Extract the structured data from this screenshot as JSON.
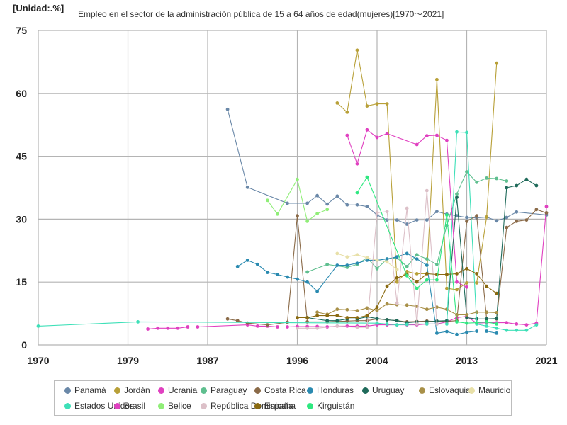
{
  "chart_data": {
    "type": "line",
    "unit_label": "[Unidad:.%]",
    "title": "Empleo en el sector de la administración pública de 15 a 64 años de edad(mujeres)[1970～2021]",
    "xlabel": "",
    "ylabel": "",
    "xlim": [
      1970,
      2021
    ],
    "ylim": [
      0,
      75
    ],
    "x_ticks": [
      1970,
      1979,
      1987,
      1996,
      2004,
      2013,
      2021
    ],
    "y_ticks": [
      0,
      15,
      30,
      45,
      60,
      75
    ],
    "grid": true,
    "legend_position": "bottom",
    "series": [
      {
        "name": "Panamá",
        "color": "#6a88a8",
        "points": [
          [
            1989,
            56.2
          ],
          [
            1991,
            37.6
          ],
          [
            1995,
            33.8
          ],
          [
            1997,
            33.8
          ],
          [
            1998,
            35.6
          ],
          [
            1999,
            33.6
          ],
          [
            2000,
            35.5
          ],
          [
            2001,
            33.4
          ],
          [
            2002,
            33.4
          ],
          [
            2003,
            33.0
          ],
          [
            2004,
            31.0
          ],
          [
            2005,
            29.8
          ],
          [
            2006,
            29.8
          ],
          [
            2007,
            28.8
          ],
          [
            2008,
            29.8
          ],
          [
            2009,
            29.8
          ],
          [
            2010,
            31.8
          ],
          [
            2011,
            31.2
          ],
          [
            2012,
            30.8
          ],
          [
            2013,
            30.4
          ],
          [
            2014,
            30.3
          ],
          [
            2015,
            30.5
          ],
          [
            2016,
            29.6
          ],
          [
            2017,
            30.4
          ],
          [
            2018,
            31.7
          ],
          [
            2021,
            31.0
          ]
        ]
      },
      {
        "name": "Jordán",
        "color": "#b8a038",
        "points": [
          [
            2000,
            57.7
          ],
          [
            2001,
            55.5
          ],
          [
            2002,
            70.3
          ],
          [
            2003,
            57.0
          ],
          [
            2004,
            57.5
          ],
          [
            2005,
            57.5
          ],
          [
            2006,
            15.0
          ],
          [
            2007,
            17.5
          ],
          [
            2008,
            17.0
          ],
          [
            2009,
            17.0
          ],
          [
            2010,
            63.3
          ],
          [
            2011,
            13.5
          ],
          [
            2012,
            13.2
          ],
          [
            2013,
            14.8
          ],
          [
            2014,
            14.8
          ],
          [
            2015,
            30.5
          ],
          [
            2016,
            67.2
          ]
        ]
      },
      {
        "name": "Ucrania",
        "color": "#e040c0",
        "points": [
          [
            1981,
            3.8
          ],
          [
            1982,
            4.0
          ],
          [
            1983,
            4.0
          ],
          [
            1984,
            4.0
          ],
          [
            1985,
            4.3
          ],
          [
            1986,
            4.3
          ],
          [
            1991,
            4.8
          ],
          [
            1992,
            4.5
          ],
          [
            1993,
            4.5
          ],
          [
            1994,
            4.3
          ],
          [
            1995,
            4.3
          ],
          [
            1996,
            4.4
          ],
          [
            1997,
            4.4
          ],
          [
            1998,
            4.4
          ],
          [
            1999,
            4.3
          ],
          [
            2000,
            4.5
          ],
          [
            2001,
            4.5
          ],
          [
            2002,
            4.5
          ],
          [
            2003,
            4.5
          ],
          [
            2004,
            4.8
          ],
          [
            2005,
            4.8
          ],
          [
            2006,
            4.8
          ],
          [
            2007,
            4.8
          ],
          [
            2008,
            4.8
          ],
          [
            2009,
            5.0
          ],
          [
            2010,
            5.0
          ],
          [
            2011,
            5.5
          ],
          [
            2012,
            6.5
          ],
          [
            2013,
            6.8
          ],
          [
            2014,
            5.2
          ],
          [
            2015,
            5.3
          ],
          [
            2016,
            5.3
          ],
          [
            2017,
            5.3
          ],
          [
            2018,
            5.0
          ],
          [
            2019,
            4.8
          ],
          [
            2020,
            5.2
          ],
          [
            2021,
            33.0
          ]
        ]
      },
      {
        "name": "Paraguay",
        "color": "#5fbf8f",
        "points": [
          [
            1997,
            17.4
          ],
          [
            1999,
            19.2
          ],
          [
            2001,
            18.5
          ],
          [
            2002,
            19.2
          ],
          [
            2003,
            20.8
          ],
          [
            2004,
            18.2
          ],
          [
            2005,
            20.5
          ],
          [
            2006,
            20.8
          ],
          [
            2007,
            18.7
          ],
          [
            2008,
            21.5
          ],
          [
            2009,
            20.5
          ],
          [
            2010,
            19.2
          ],
          [
            2011,
            28.5
          ],
          [
            2012,
            36.0
          ],
          [
            2013,
            41.3
          ],
          [
            2014,
            38.8
          ],
          [
            2015,
            39.8
          ],
          [
            2016,
            39.7
          ],
          [
            2017,
            39.1
          ]
        ]
      },
      {
        "name": "Costa Rica",
        "color": "#8a6a48",
        "points": [
          [
            1989,
            6.2
          ],
          [
            1990,
            5.8
          ],
          [
            1991,
            5.2
          ],
          [
            1993,
            4.8
          ],
          [
            1995,
            5.4
          ],
          [
            1996,
            30.8
          ],
          [
            1997,
            5.5
          ],
          [
            1999,
            5.5
          ],
          [
            2000,
            5.6
          ],
          [
            2001,
            5.7
          ],
          [
            2002,
            5.8
          ],
          [
            2003,
            5.8
          ],
          [
            2004,
            6.2
          ],
          [
            2005,
            6.0
          ],
          [
            2006,
            5.8
          ],
          [
            2007,
            5.5
          ],
          [
            2008,
            5.6
          ],
          [
            2009,
            5.7
          ],
          [
            2010,
            5.6
          ],
          [
            2011,
            5.6
          ],
          [
            2012,
            5.8
          ],
          [
            2013,
            29.5
          ],
          [
            2014,
            30.8
          ],
          [
            2015,
            6.2
          ],
          [
            2016,
            6.2
          ],
          [
            2017,
            28.0
          ],
          [
            2018,
            29.5
          ],
          [
            2019,
            29.8
          ],
          [
            2020,
            32.3
          ],
          [
            2021,
            31.5
          ]
        ]
      },
      {
        "name": "Honduras",
        "color": "#2a8ab0",
        "points": [
          [
            1990,
            18.7
          ],
          [
            1991,
            20.2
          ],
          [
            1992,
            19.2
          ],
          [
            1993,
            17.3
          ],
          [
            1994,
            16.8
          ],
          [
            1995,
            16.2
          ],
          [
            1996,
            15.7
          ],
          [
            1997,
            15.0
          ],
          [
            1998,
            12.8
          ],
          [
            2000,
            19.0
          ],
          [
            2001,
            19.0
          ],
          [
            2002,
            19.5
          ],
          [
            2003,
            20.2
          ],
          [
            2004,
            20.2
          ],
          [
            2005,
            20.5
          ],
          [
            2006,
            21.0
          ],
          [
            2007,
            21.8
          ],
          [
            2008,
            20.5
          ],
          [
            2009,
            19.0
          ],
          [
            2010,
            2.8
          ],
          [
            2011,
            3.2
          ],
          [
            2012,
            2.5
          ],
          [
            2013,
            3.0
          ],
          [
            2014,
            3.3
          ],
          [
            2015,
            3.3
          ],
          [
            2016,
            2.8
          ]
        ]
      },
      {
        "name": "Uruguay",
        "color": "#1f6a5a",
        "points": [
          [
            1997,
            6.5
          ],
          [
            1999,
            5.8
          ],
          [
            2000,
            5.8
          ],
          [
            2001,
            6.2
          ],
          [
            2002,
            6.2
          ],
          [
            2003,
            6.7
          ],
          [
            2004,
            6.3
          ],
          [
            2005,
            6.0
          ],
          [
            2006,
            5.8
          ],
          [
            2007,
            5.3
          ],
          [
            2008,
            5.5
          ],
          [
            2009,
            5.5
          ],
          [
            2010,
            5.7
          ],
          [
            2011,
            5.8
          ],
          [
            2012,
            35.2
          ],
          [
            2013,
            6.5
          ],
          [
            2014,
            6.2
          ],
          [
            2015,
            6.2
          ],
          [
            2016,
            6.3
          ],
          [
            2017,
            37.5
          ],
          [
            2018,
            38.0
          ],
          [
            2019,
            39.5
          ],
          [
            2020,
            38.0
          ]
        ]
      },
      {
        "name": "Eslovaquia",
        "color": "#a89048",
        "points": [
          [
            1998,
            7.8
          ],
          [
            1999,
            7.3
          ],
          [
            2000,
            8.5
          ],
          [
            2001,
            8.4
          ],
          [
            2002,
            8.2
          ],
          [
            2003,
            8.8
          ],
          [
            2004,
            8.2
          ],
          [
            2005,
            9.8
          ],
          [
            2006,
            9.6
          ],
          [
            2007,
            9.5
          ],
          [
            2008,
            9.2
          ],
          [
            2009,
            8.5
          ],
          [
            2010,
            9.0
          ],
          [
            2011,
            8.5
          ],
          [
            2012,
            7.2
          ],
          [
            2013,
            7.2
          ],
          [
            2014,
            7.8
          ],
          [
            2015,
            7.8
          ],
          [
            2016,
            7.7
          ]
        ]
      },
      {
        "name": "Mauricio",
        "color": "#e8e0a8",
        "points": [
          [
            2000,
            21.8
          ],
          [
            2001,
            21.0
          ],
          [
            2002,
            21.5
          ],
          [
            2003,
            20.8
          ],
          [
            2004,
            20.2
          ],
          [
            2005,
            19.8
          ],
          [
            2006,
            18.0
          ]
        ]
      },
      {
        "name": "Estados Unidos",
        "color": "#3ee0b8",
        "points": [
          [
            1970,
            4.5
          ],
          [
            1980,
            5.5
          ],
          [
            2004,
            5.2
          ],
          [
            2005,
            5.0
          ],
          [
            2006,
            4.8
          ],
          [
            2007,
            4.9
          ],
          [
            2008,
            5.0
          ],
          [
            2009,
            5.0
          ],
          [
            2010,
            5.0
          ],
          [
            2011,
            5.0
          ],
          [
            2012,
            50.8
          ],
          [
            2013,
            50.7
          ],
          [
            2014,
            5.0
          ],
          [
            2015,
            4.5
          ],
          [
            2016,
            4.0
          ],
          [
            2017,
            3.5
          ],
          [
            2018,
            3.5
          ],
          [
            2019,
            3.5
          ],
          [
            2020,
            4.8
          ]
        ]
      },
      {
        "name": "Brasil",
        "color": "#e040c0",
        "points": [
          [
            2001,
            50.0
          ],
          [
            2002,
            43.2
          ],
          [
            2003,
            51.3
          ],
          [
            2004,
            49.5
          ],
          [
            2005,
            50.4
          ],
          [
            2008,
            47.8
          ],
          [
            2009,
            49.9
          ],
          [
            2010,
            50.0
          ],
          [
            2011,
            48.8
          ],
          [
            2012,
            15.0
          ],
          [
            2013,
            13.8
          ]
        ]
      },
      {
        "name": "Belice",
        "color": "#90ee78",
        "points": [
          [
            1993,
            34.5
          ],
          [
            1994,
            31.2
          ],
          [
            1996,
            39.5
          ],
          [
            1997,
            29.5
          ],
          [
            1998,
            31.3
          ],
          [
            1999,
            32.3
          ]
        ]
      },
      {
        "name": "República Dominicana",
        "color": "#dcc0c8",
        "points": [
          [
            1996,
            4.0
          ],
          [
            1997,
            4.0
          ],
          [
            1998,
            4.0
          ],
          [
            2000,
            4.5
          ],
          [
            2002,
            4.2
          ],
          [
            2003,
            4.2
          ],
          [
            2004,
            31.5
          ],
          [
            2005,
            31.8
          ],
          [
            2006,
            10.0
          ],
          [
            2007,
            32.6
          ],
          [
            2008,
            5.0
          ],
          [
            2009,
            36.8
          ],
          [
            2010,
            5.0
          ]
        ]
      },
      {
        "name": "España",
        "color": "#8a6a10",
        "points": [
          [
            1996,
            6.5
          ],
          [
            1997,
            6.5
          ],
          [
            1998,
            7.0
          ],
          [
            1999,
            7.0
          ],
          [
            2000,
            7.0
          ],
          [
            2001,
            6.5
          ],
          [
            2002,
            6.5
          ],
          [
            2003,
            7.0
          ],
          [
            2004,
            9.0
          ],
          [
            2005,
            14.0
          ],
          [
            2006,
            16.0
          ],
          [
            2007,
            16.8
          ],
          [
            2008,
            15.0
          ],
          [
            2009,
            17.0
          ],
          [
            2010,
            16.8
          ],
          [
            2011,
            16.8
          ],
          [
            2012,
            17.0
          ],
          [
            2013,
            18.2
          ],
          [
            2014,
            17.0
          ],
          [
            2015,
            14.0
          ],
          [
            2016,
            12.3
          ]
        ]
      },
      {
        "name": "Kirguistán",
        "color": "#2ee880",
        "points": [
          [
            2002,
            36.3
          ],
          [
            2003,
            40.0
          ],
          [
            2007,
            16.5
          ],
          [
            2008,
            13.5
          ],
          [
            2009,
            15.5
          ],
          [
            2010,
            15.5
          ],
          [
            2011,
            31.0
          ],
          [
            2012,
            5.5
          ],
          [
            2013,
            5.2
          ],
          [
            2014,
            5.3
          ],
          [
            2015,
            5.5
          ],
          [
            2016,
            5.0
          ]
        ]
      }
    ]
  }
}
